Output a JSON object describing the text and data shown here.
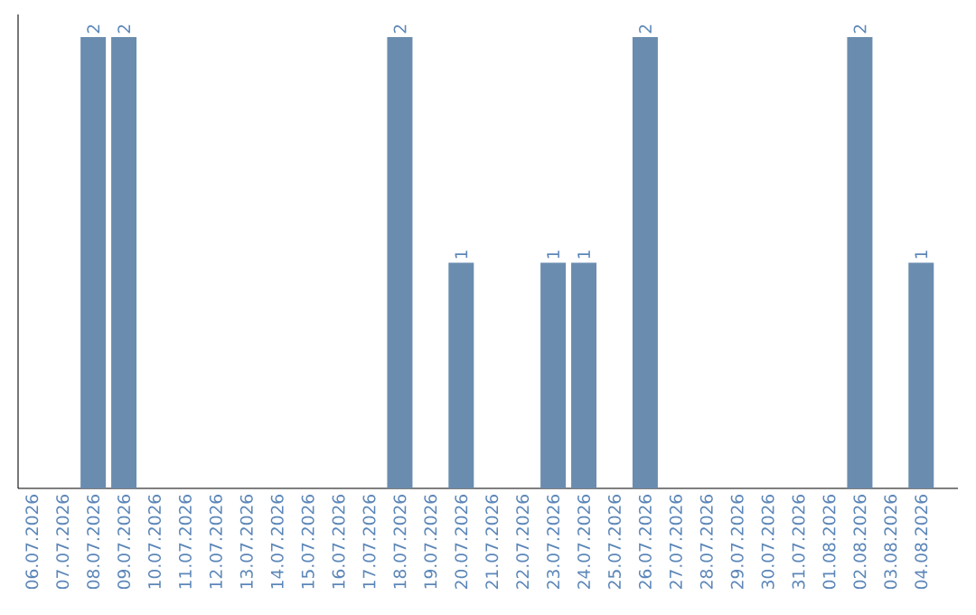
{
  "chart_data": {
    "type": "bar",
    "color": "#6a8caf",
    "categories": [
      "06.07.2026",
      "07.07.2026",
      "08.07.2026",
      "09.07.2026",
      "10.07.2026",
      "11.07.2026",
      "12.07.2026",
      "13.07.2026",
      "14.07.2026",
      "15.07.2026",
      "16.07.2026",
      "17.07.2026",
      "18.07.2026",
      "19.07.2026",
      "20.07.2026",
      "21.07.2026",
      "22.07.2026",
      "23.07.2026",
      "24.07.2026",
      "25.07.2026",
      "26.07.2026",
      "27.07.2026",
      "28.07.2026",
      "29.07.2026",
      "30.07.2026",
      "31.07.2026",
      "01.08.2026",
      "02.08.2026",
      "03.08.2026",
      "04.08.2026"
    ],
    "values": [
      0,
      0,
      2,
      2,
      0,
      0,
      0,
      0,
      0,
      0,
      0,
      0,
      2,
      0,
      1,
      0,
      0,
      1,
      1,
      0,
      2,
      0,
      0,
      0,
      0,
      0,
      0,
      2,
      0,
      1
    ],
    "value_labels": [
      null,
      null,
      "2",
      "2",
      null,
      null,
      null,
      null,
      null,
      null,
      null,
      null,
      "2",
      null,
      "1",
      null,
      null,
      "1",
      "1",
      null,
      "2",
      null,
      null,
      null,
      null,
      null,
      null,
      "2",
      null,
      "1"
    ]
  }
}
